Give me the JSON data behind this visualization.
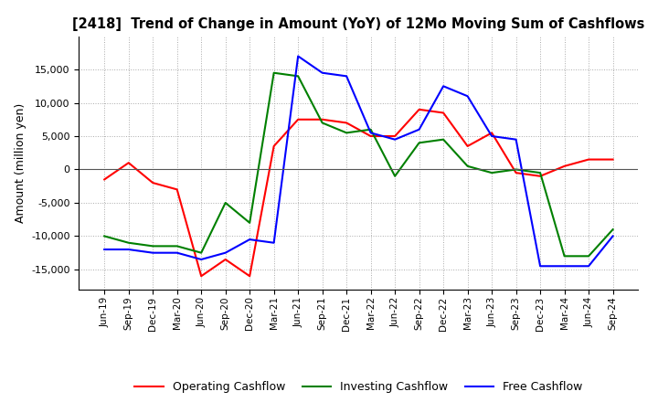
{
  "title": "[2418]  Trend of Change in Amount (YoY) of 12Mo Moving Sum of Cashflows",
  "ylabel": "Amount (million yen)",
  "x_labels": [
    "Jun-19",
    "Sep-19",
    "Dec-19",
    "Mar-20",
    "Jun-20",
    "Sep-20",
    "Dec-20",
    "Mar-21",
    "Jun-21",
    "Sep-21",
    "Dec-21",
    "Mar-22",
    "Jun-22",
    "Sep-22",
    "Dec-22",
    "Mar-23",
    "Jun-23",
    "Sep-23",
    "Dec-23",
    "Mar-24",
    "Jun-24",
    "Sep-24"
  ],
  "operating": [
    -1500,
    1000,
    -2000,
    -3000,
    -16000,
    -13500,
    -16000,
    3500,
    7500,
    7500,
    7000,
    5000,
    5000,
    9000,
    8500,
    3500,
    5500,
    -500,
    -1000,
    500,
    1500,
    1500
  ],
  "investing": [
    -10000,
    -11000,
    -11500,
    -11500,
    -12500,
    -5000,
    -8000,
    14500,
    14000,
    7000,
    5500,
    6000,
    -1000,
    4000,
    4500,
    500,
    -500,
    0,
    -500,
    -13000,
    -13000,
    -9000
  ],
  "free": [
    -12000,
    -12000,
    -12500,
    -12500,
    -13500,
    -12500,
    -10500,
    -11000,
    17000,
    14500,
    14000,
    5500,
    4500,
    6000,
    12500,
    11000,
    5000,
    4500,
    -14500,
    -14500,
    -14500,
    -10000
  ],
  "operating_color": "#ff0000",
  "investing_color": "#008000",
  "free_color": "#0000ff",
  "ylim": [
    -18000,
    20000
  ],
  "yticks": [
    -15000,
    -10000,
    -5000,
    0,
    5000,
    10000,
    15000
  ],
  "legend_labels": [
    "Operating Cashflow",
    "Investing Cashflow",
    "Free Cashflow"
  ],
  "background_color": "#ffffff",
  "grid_color": "#aaaaaa"
}
